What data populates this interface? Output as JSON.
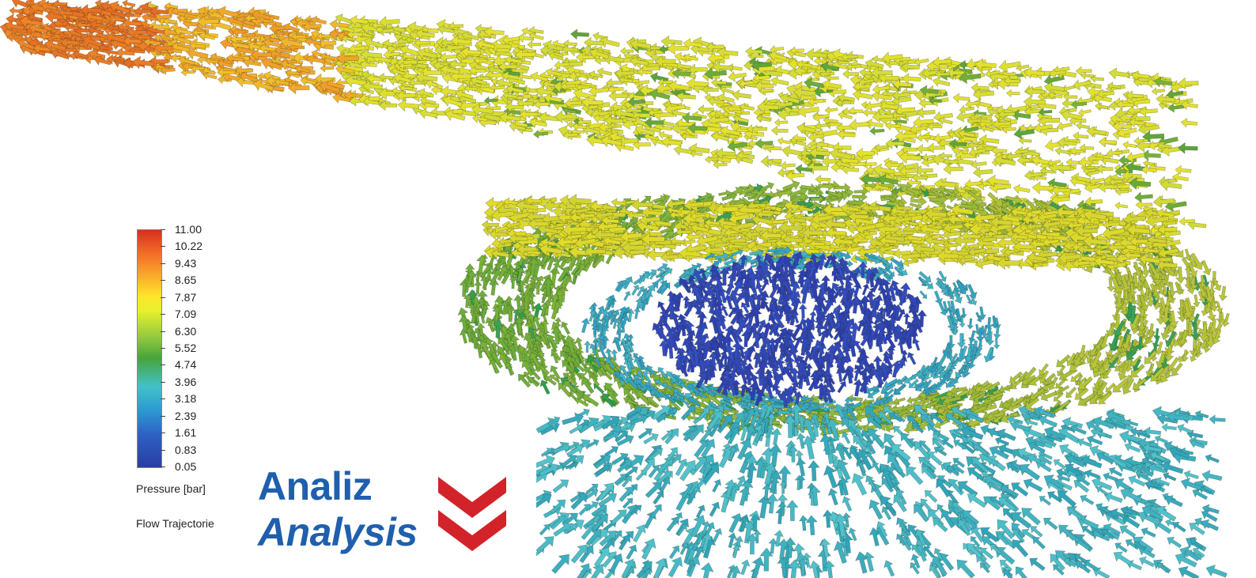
{
  "legend": {
    "ticks": [
      "11.00",
      "10.22",
      "9.43",
      "8.65",
      "7.87",
      "7.09",
      "6.30",
      "5.52",
      "4.74",
      "3.96",
      "3.18",
      "2.39",
      "1.61",
      "0.83",
      "0.05"
    ],
    "title": "Pressure [bar]",
    "subtitle": "Flow Trajectorie"
  },
  "logo": {
    "line1": "Analiz",
    "line2": "Analysis"
  },
  "colors": {
    "brand_blue": "#1f5fad",
    "brand_red": "#d2232a"
  }
}
